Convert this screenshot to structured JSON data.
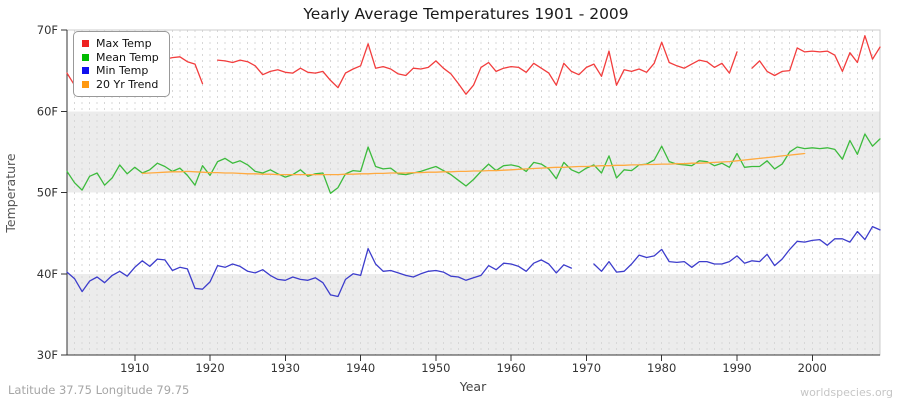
{
  "title": "Yearly Average Temperatures 1901 - 2009",
  "axes": {
    "x_label": "Year",
    "y_label": "Temperature"
  },
  "footer": {
    "left": "Latitude 37.75 Longitude 79.75",
    "right": "worldspecies.org"
  },
  "legend": {
    "items": [
      {
        "label": "Max Temp",
        "color": "#ee2222"
      },
      {
        "label": "Mean Temp",
        "color": "#00bb00"
      },
      {
        "label": "Min Temp",
        "color": "#1111ee"
      },
      {
        "label": "20 Yr Trend",
        "color": "#ff9911"
      }
    ]
  },
  "chart_data": {
    "type": "line",
    "title": "Yearly Average Temperatures 1901 - 2009",
    "xlabel": "Year",
    "ylabel": "Temperature",
    "xlim": [
      1901,
      2009
    ],
    "ylim": [
      30,
      70
    ],
    "x_start": 1901,
    "x_end": 2009,
    "x_ticks": [
      1910,
      1920,
      1930,
      1940,
      1950,
      1960,
      1970,
      1980,
      1990,
      2000
    ],
    "y_ticks": [
      {
        "label": "70F",
        "value": 70
      },
      {
        "label": "60F",
        "value": 60
      },
      {
        "label": "50F",
        "value": 50
      },
      {
        "label": "40F",
        "value": 40
      },
      {
        "label": "30F",
        "value": 30
      }
    ],
    "grid": {
      "vertical_dashed_every_year": true,
      "band_fill": "#ececec"
    },
    "legend_position": "top-left",
    "series": [
      {
        "name": "Max Temp",
        "color": "#f23d3d",
        "values": [
          64.7,
          63.2,
          62.3,
          63.9,
          64.6,
          64.0,
          63.5,
          64.8,
          65.2,
          65.7,
          64.8,
          65.3,
          66.8,
          66.4,
          66.6,
          66.7,
          66.1,
          65.8,
          63.4,
          null,
          66.3,
          66.2,
          66.0,
          66.3,
          66.1,
          65.6,
          64.5,
          64.9,
          65.1,
          64.8,
          64.7,
          65.3,
          64.8,
          64.7,
          64.9,
          63.8,
          62.9,
          64.7,
          65.2,
          65.6,
          68.3,
          65.3,
          65.5,
          65.2,
          64.6,
          64.4,
          65.3,
          65.2,
          65.4,
          66.2,
          65.3,
          64.6,
          63.4,
          62.1,
          63.2,
          65.4,
          66.0,
          64.9,
          65.3,
          65.5,
          65.4,
          64.8,
          65.9,
          65.3,
          64.7,
          63.2,
          65.9,
          64.9,
          64.5,
          65.4,
          65.8,
          64.3,
          67.4,
          63.2,
          65.1,
          64.9,
          65.2,
          64.8,
          65.9,
          68.5,
          66.0,
          65.6,
          65.3,
          65.8,
          66.3,
          66.1,
          65.4,
          65.9,
          64.7,
          67.3,
          null,
          65.3,
          66.2,
          64.9,
          64.4,
          64.9,
          65.0,
          67.8,
          67.3,
          67.4,
          67.3,
          67.4,
          66.9,
          64.9,
          67.2,
          66.0,
          69.3,
          66.4,
          67.9
        ]
      },
      {
        "name": "Mean Temp",
        "color": "#3dbb3d",
        "values": [
          52.6,
          51.2,
          50.3,
          52.0,
          52.4,
          50.9,
          51.8,
          53.4,
          52.3,
          53.1,
          52.4,
          52.8,
          53.6,
          53.2,
          52.6,
          53.0,
          52.1,
          50.9,
          53.3,
          52.1,
          53.8,
          54.2,
          53.6,
          53.9,
          53.4,
          52.6,
          52.4,
          52.8,
          52.3,
          51.9,
          52.2,
          52.8,
          52.0,
          52.3,
          52.4,
          49.9,
          50.6,
          52.3,
          52.7,
          52.6,
          55.6,
          53.2,
          52.9,
          53.0,
          52.3,
          52.2,
          52.4,
          52.6,
          52.9,
          53.2,
          52.7,
          52.2,
          51.5,
          50.8,
          51.6,
          52.6,
          53.5,
          52.7,
          53.3,
          53.4,
          53.2,
          52.6,
          53.7,
          53.5,
          52.9,
          51.7,
          53.7,
          52.8,
          52.4,
          53.0,
          53.4,
          52.4,
          54.5,
          51.8,
          52.8,
          52.7,
          53.4,
          53.5,
          54.0,
          55.7,
          53.8,
          53.5,
          53.4,
          53.3,
          53.9,
          53.8,
          53.3,
          53.6,
          53.1,
          54.8,
          53.1,
          53.2,
          53.2,
          53.9,
          52.9,
          53.5,
          55.0,
          55.6,
          55.4,
          55.5,
          55.4,
          55.5,
          55.3,
          54.1,
          56.4,
          54.7,
          57.2,
          55.7,
          56.6
        ]
      },
      {
        "name": "Min Temp",
        "color": "#3d3dcc",
        "values": [
          40.2,
          39.4,
          37.8,
          39.1,
          39.6,
          38.9,
          39.8,
          40.3,
          39.7,
          40.8,
          41.6,
          40.9,
          41.8,
          41.7,
          40.4,
          40.8,
          40.6,
          38.2,
          38.1,
          39.0,
          41.0,
          40.8,
          41.2,
          40.9,
          40.3,
          40.1,
          40.5,
          39.8,
          39.3,
          39.2,
          39.6,
          39.3,
          39.2,
          39.5,
          38.9,
          37.4,
          37.2,
          39.3,
          40.0,
          39.8,
          43.1,
          41.2,
          40.3,
          40.4,
          40.1,
          39.8,
          39.6,
          40.0,
          40.3,
          40.4,
          40.2,
          39.7,
          39.6,
          39.2,
          39.5,
          39.8,
          41.0,
          40.5,
          41.3,
          41.2,
          40.9,
          40.3,
          41.3,
          41.7,
          41.2,
          40.1,
          41.1,
          40.7,
          null,
          null,
          41.2,
          40.3,
          41.5,
          40.2,
          40.3,
          41.2,
          42.3,
          42.0,
          42.2,
          43.0,
          41.5,
          41.4,
          41.5,
          40.8,
          41.5,
          41.5,
          41.2,
          41.2,
          41.5,
          42.2,
          41.3,
          41.6,
          41.5,
          42.4,
          41.0,
          41.8,
          43.0,
          44.0,
          43.9,
          44.1,
          44.2,
          43.5,
          44.3,
          44.3,
          43.9,
          45.2,
          44.2,
          45.8,
          45.4
        ]
      },
      {
        "name": "20 Yr Trend",
        "color": "#ffaa40",
        "values": [
          null,
          null,
          null,
          null,
          null,
          null,
          null,
          null,
          null,
          null,
          52.35,
          52.4,
          52.45,
          52.5,
          52.55,
          52.55,
          52.6,
          52.55,
          52.5,
          52.45,
          52.45,
          52.4,
          52.4,
          52.35,
          52.3,
          52.3,
          52.25,
          52.25,
          52.2,
          52.2,
          52.2,
          52.2,
          52.2,
          52.2,
          52.2,
          52.2,
          52.2,
          52.25,
          52.25,
          52.3,
          52.3,
          52.35,
          52.35,
          52.4,
          52.4,
          52.4,
          52.45,
          52.45,
          52.5,
          52.5,
          52.55,
          52.55,
          52.6,
          52.6,
          52.65,
          52.65,
          52.7,
          52.7,
          52.75,
          52.8,
          52.85,
          52.9,
          52.95,
          53.0,
          53.05,
          53.1,
          53.1,
          53.15,
          53.2,
          53.2,
          53.25,
          53.3,
          53.3,
          53.35,
          53.35,
          53.4,
          53.4,
          53.45,
          53.45,
          53.5,
          53.5,
          53.55,
          53.55,
          53.6,
          53.6,
          53.65,
          53.7,
          53.75,
          53.8,
          53.9,
          54.0,
          54.1,
          54.2,
          54.3,
          54.4,
          54.5,
          54.6,
          54.7,
          54.8,
          null,
          null,
          null,
          null,
          null,
          null,
          null,
          null,
          null,
          null
        ]
      }
    ]
  }
}
